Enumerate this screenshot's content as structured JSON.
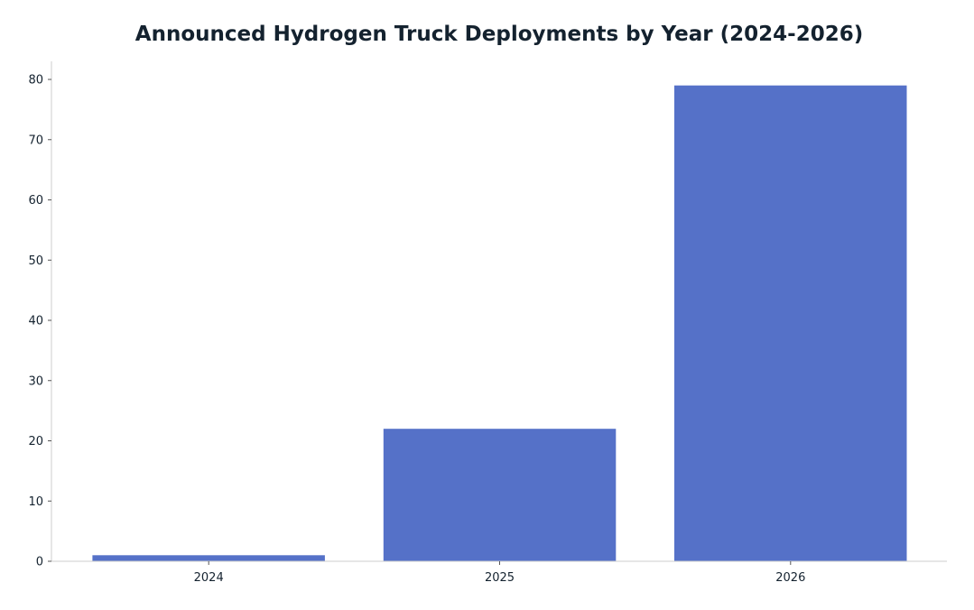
{
  "chart_data": {
    "type": "bar",
    "title": "Announced Hydrogen Truck Deployments by Year (2024-2026)",
    "xlabel": "",
    "ylabel": "",
    "categories": [
      "2024",
      "2025",
      "2026"
    ],
    "values": [
      1,
      22,
      79
    ],
    "ylim": [
      0,
      83
    ],
    "yticks": [
      0,
      10,
      20,
      30,
      40,
      50,
      60,
      70,
      80
    ],
    "bar_color": "#5571c8",
    "axis_color": "#cccccc",
    "text_color": "#14222f",
    "grid": false,
    "legend": "none"
  }
}
